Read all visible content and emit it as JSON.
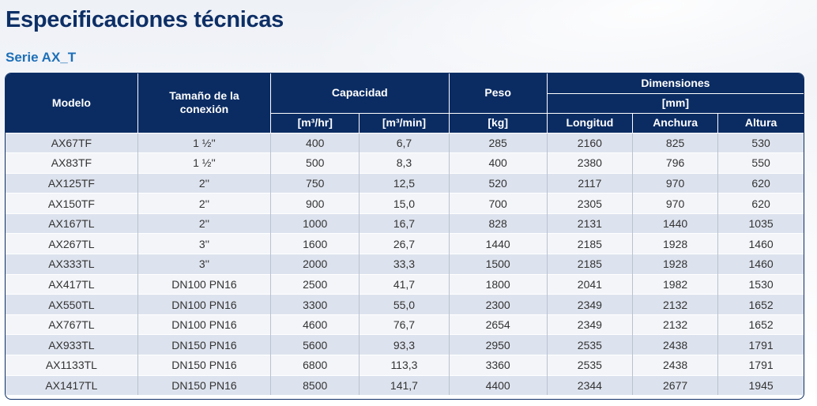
{
  "title": "Especificaciones técnicas",
  "subtitle": "Serie AX_T",
  "headers": {
    "modelo": "Modelo",
    "conexion": "Tamaño de la conexión",
    "capacidad": "Capacidad",
    "peso": "Peso",
    "dimensiones": "Dimensiones",
    "mm": "[mm]",
    "m3hr": "[m³/hr]",
    "m3min": "[m³/min]",
    "kg": "[kg]",
    "longitud": "Longitud",
    "anchura": "Anchura",
    "altura": "Altura"
  },
  "rows": [
    [
      "AX67TF",
      "1 ½''",
      "400",
      "6,7",
      "285",
      "2160",
      "825",
      "530"
    ],
    [
      "AX83TF",
      "1 ½''",
      "500",
      "8,3",
      "400",
      "2380",
      "796",
      "550"
    ],
    [
      "AX125TF",
      "2''",
      "750",
      "12,5",
      "520",
      "2117",
      "970",
      "620"
    ],
    [
      "AX150TF",
      "2''",
      "900",
      "15,0",
      "700",
      "2305",
      "970",
      "620"
    ],
    [
      "AX167TL",
      "2''",
      "1000",
      "16,7",
      "828",
      "2131",
      "1440",
      "1035"
    ],
    [
      "AX267TL",
      "3''",
      "1600",
      "26,7",
      "1440",
      "2185",
      "1928",
      "1460"
    ],
    [
      "AX333TL",
      "3''",
      "2000",
      "33,3",
      "1500",
      "2185",
      "1928",
      "1460"
    ],
    [
      "AX417TL",
      "DN100 PN16",
      "2500",
      "41,7",
      "1800",
      "2041",
      "1982",
      "1530"
    ],
    [
      "AX550TL",
      "DN100 PN16",
      "3300",
      "55,0",
      "2300",
      "2349",
      "2132",
      "1652"
    ],
    [
      "AX767TL",
      "DN100 PN16",
      "4600",
      "76,7",
      "2654",
      "2349",
      "2132",
      "1652"
    ],
    [
      "AX933TL",
      "DN150 PN16",
      "5600",
      "93,3",
      "2950",
      "2535",
      "2438",
      "1791"
    ],
    [
      "AX1133TL",
      "DN150 PN16",
      "6800",
      "113,3",
      "3360",
      "2535",
      "2438",
      "1791"
    ],
    [
      "AX1417TL",
      "DN150 PN16",
      "8500",
      "141,7",
      "4400",
      "2344",
      "2677",
      "1945"
    ]
  ]
}
